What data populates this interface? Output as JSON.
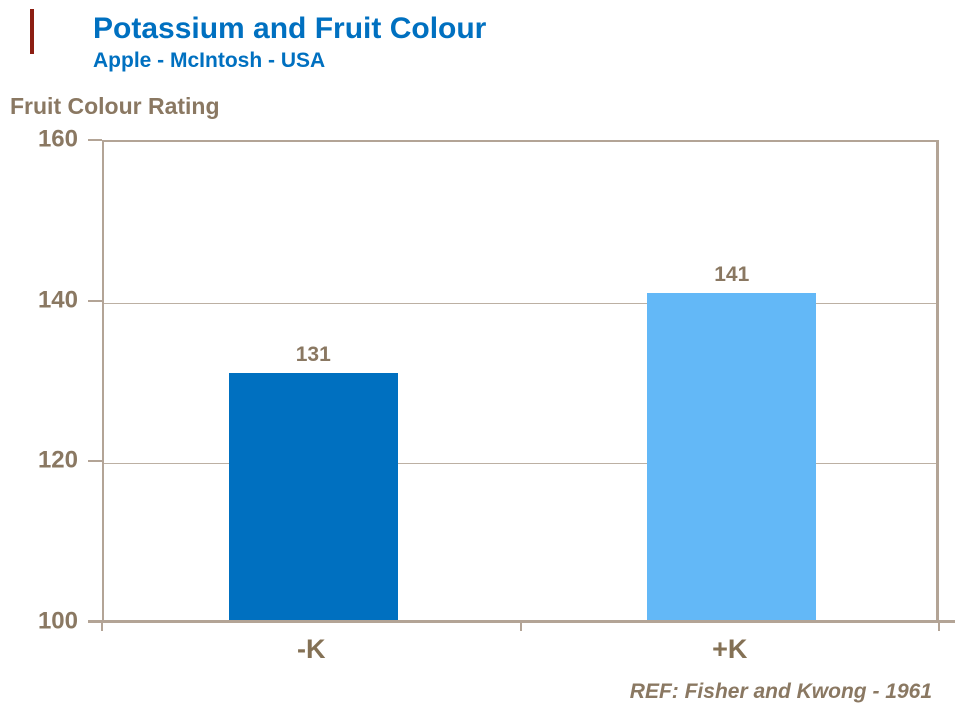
{
  "slide": {
    "title": "Potassium and Fruit Colour",
    "subtitle": "Apple - McIntosh - USA",
    "footer": "REF: Fisher and Kwong - 1961",
    "colors": {
      "title_blue": "#0070C0",
      "text_brown": "#8A7862",
      "axis_taupe": "#B3A496",
      "gridline_taupe": "#BCB0A3",
      "red_accent": "#8C1E12"
    }
  },
  "chart_data": {
    "type": "bar",
    "title": "Potassium and Fruit Colour",
    "subtitle": "Apple - McIntosh - USA",
    "ylabel": "Fruit Colour Rating",
    "xlabel": "",
    "categories": [
      "-K",
      "+K"
    ],
    "values": [
      131,
      141
    ],
    "value_labels": [
      "131",
      "141"
    ],
    "bar_colors": [
      "#0070C0",
      "#63B8F7"
    ],
    "ylim": [
      100,
      160
    ],
    "yticks": [
      100,
      120,
      140,
      160
    ],
    "grid": "horizontal",
    "legend": "none",
    "annotation": "REF: Fisher and Kwong - 1961"
  }
}
